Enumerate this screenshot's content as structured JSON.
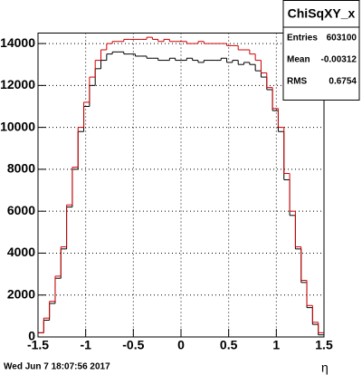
{
  "chart_data": {
    "type": "histogram",
    "bins": [
      -1.5,
      -1.44,
      -1.38,
      -1.32,
      -1.26,
      -1.2,
      -1.14,
      -1.08,
      -1.02,
      -0.96,
      -0.9,
      -0.84,
      -0.78,
      -0.72,
      -0.66,
      -0.6,
      -0.54,
      -0.48,
      -0.42,
      -0.36,
      -0.3,
      -0.24,
      -0.18,
      -0.12,
      -0.06,
      0,
      0.06,
      0.12,
      0.18,
      0.24,
      0.3,
      0.36,
      0.42,
      0.48,
      0.54,
      0.6,
      0.66,
      0.72,
      0.78,
      0.84,
      0.9,
      0.96,
      1.02,
      1.08,
      1.14,
      1.2,
      1.26,
      1.32,
      1.38,
      1.44,
      1.5
    ],
    "series": [
      {
        "color": "#000000",
        "values": [
          200,
          800,
          1600,
          2800,
          4200,
          6200,
          8000,
          9800,
          11000,
          12000,
          12800,
          13200,
          13500,
          13600,
          13600,
          13500,
          13500,
          13400,
          13400,
          13300,
          13300,
          13200,
          13200,
          13300,
          13200,
          13200,
          13300,
          13200,
          13100,
          13200,
          13200,
          13200,
          13300,
          13100,
          13200,
          13000,
          13100,
          13000,
          12700,
          12400,
          11800,
          10800,
          9800,
          7500,
          5800,
          4200,
          2600,
          1400,
          600,
          100
        ]
      },
      {
        "color": "#d00000",
        "values": [
          200,
          900,
          1700,
          2900,
          4300,
          6300,
          8100,
          10000,
          11200,
          12400,
          13200,
          13700,
          14000,
          14100,
          14100,
          14200,
          14200,
          14200,
          14200,
          14300,
          14200,
          14100,
          14200,
          14100,
          14100,
          14100,
          14000,
          14000,
          14100,
          14000,
          14000,
          14000,
          14000,
          13900,
          13900,
          13700,
          13700,
          13500,
          13200,
          12600,
          11900,
          10900,
          10000,
          7800,
          6000,
          4300,
          2700,
          1500,
          700,
          200
        ]
      }
    ],
    "xlim": [
      -1.5,
      1.5
    ],
    "xticks": [
      -1.5,
      -1,
      -0.5,
      0,
      0.5,
      1,
      1.5
    ],
    "ylim": [
      0,
      14500
    ],
    "yticks": [
      0,
      2000,
      4000,
      6000,
      8000,
      10000,
      12000,
      14000
    ],
    "grid": true,
    "xlabel": "η",
    "stats": {
      "title": "ChiSqXY_x",
      "entries_label": "Entries",
      "entries": "603100",
      "mean_label": "Mean",
      "mean": "-0.00312",
      "rms_label": "RMS",
      "rms": "0.6754"
    },
    "footer": "Wed Jun  7 18:07:56 2017"
  }
}
